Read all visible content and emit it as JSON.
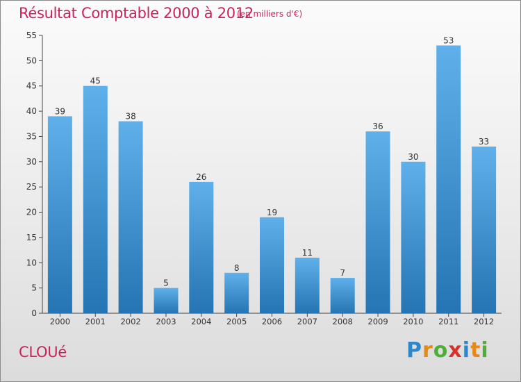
{
  "header": {
    "title": "Résultat Comptable 2000 à 2012",
    "subtitle": "(en milliers d'€)"
  },
  "footer": {
    "commune": "CLOUé",
    "logo": {
      "letters": [
        "P",
        "r",
        "o",
        "x",
        "i",
        "t",
        "i"
      ]
    }
  },
  "colors": {
    "bar_light": "#5fb0ea",
    "bar_dark": "#2574b3",
    "title": "#c8245c",
    "axis": "#444444"
  },
  "chart_data": {
    "type": "bar",
    "title": "Résultat Comptable 2000 à 2012",
    "subtitle": "(en milliers d'€)",
    "xlabel": "",
    "ylabel": "",
    "categories": [
      "2000",
      "2001",
      "2002",
      "2003",
      "2004",
      "2005",
      "2006",
      "2007",
      "2008",
      "2009",
      "2010",
      "2011",
      "2012"
    ],
    "values": [
      39,
      45,
      38,
      5,
      26,
      8,
      19,
      11,
      7,
      36,
      30,
      53,
      33
    ],
    "ylim": [
      0,
      55
    ],
    "yticks": [
      0,
      5,
      10,
      15,
      20,
      25,
      30,
      35,
      40,
      45,
      50,
      55
    ],
    "grid": false,
    "legend": "none"
  }
}
